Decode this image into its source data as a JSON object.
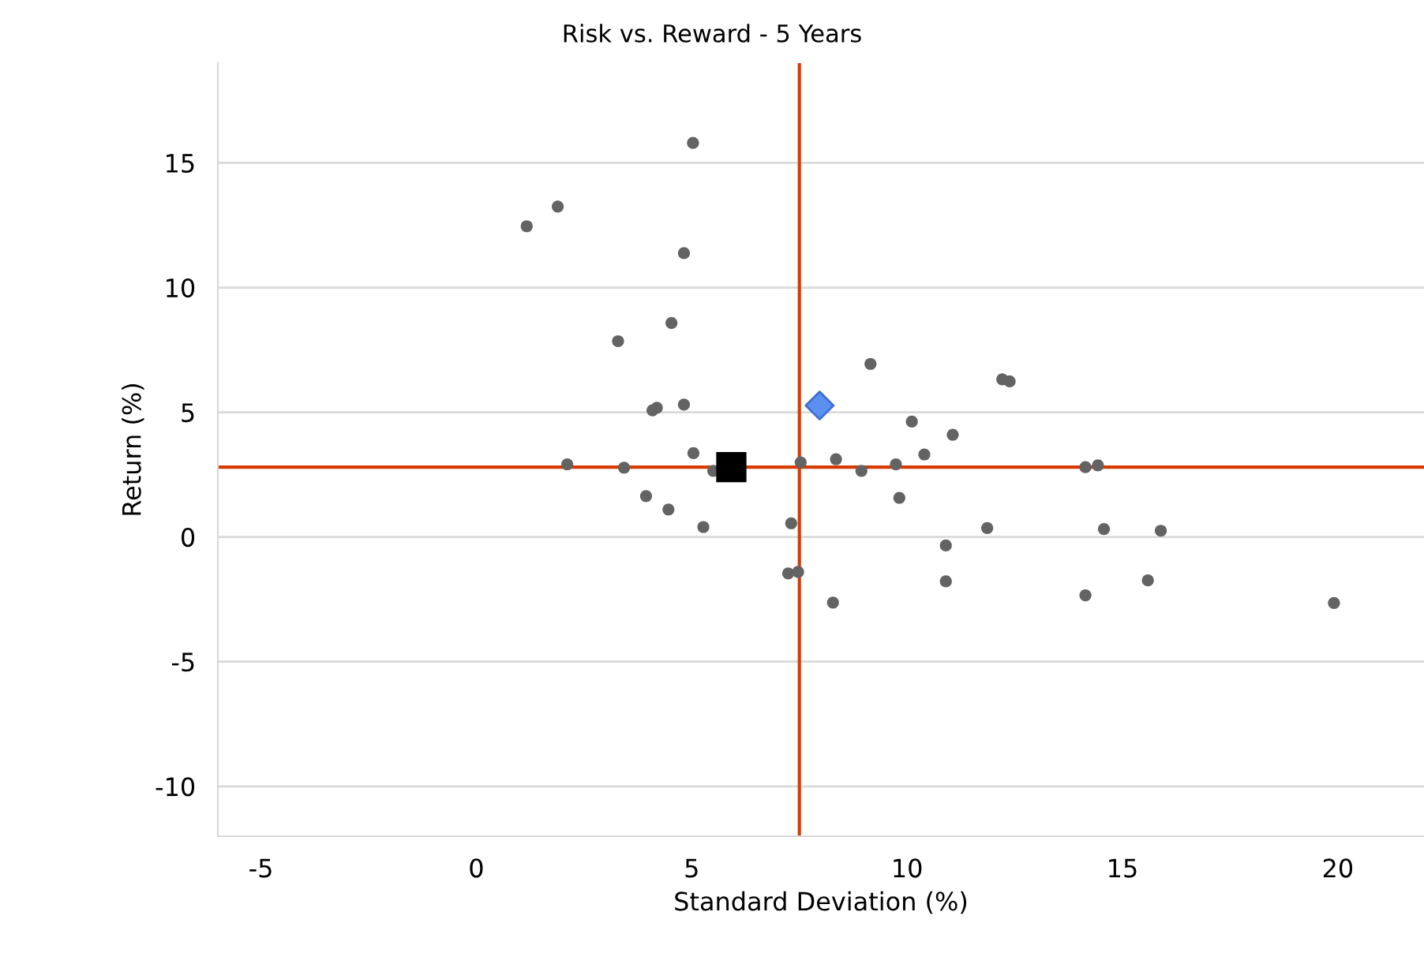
{
  "chart_data": {
    "type": "scatter",
    "title": "Risk vs. Reward - 5 Years",
    "xlabel": "Standard Deviation (%)",
    "ylabel": "Return (%)",
    "xlim": [
      -6,
      22
    ],
    "xticks": [
      -5,
      0,
      5,
      10,
      15,
      20
    ],
    "ylim": [
      -12,
      19
    ],
    "yticks": [
      -10,
      -5,
      0,
      5,
      10,
      15
    ],
    "grid": "y",
    "legend": false,
    "series": [
      {
        "color": "#636363",
        "marker": "circle",
        "x": [
          5.03,
          1.89,
          1.17,
          4.82,
          4.53,
          3.29,
          4.09,
          4.19,
          4.82,
          5.04,
          2.11,
          3.43,
          3.94,
          5.5,
          4.46,
          5.27,
          7.53,
          7.31,
          7.24,
          7.47,
          8.28,
          8.35,
          8.94,
          9.15,
          9.74,
          9.82,
          10.11,
          10.4,
          10.9,
          10.9,
          11.06,
          11.86,
          12.21,
          12.38,
          14.14,
          14.43,
          14.14,
          14.57,
          15.59,
          15.89,
          19.91
        ],
        "values": [
          15.8,
          13.25,
          12.46,
          11.38,
          8.58,
          7.85,
          5.08,
          5.18,
          5.31,
          3.36,
          2.91,
          2.78,
          1.64,
          2.65,
          1.1,
          0.4,
          2.99,
          0.55,
          -1.46,
          -1.4,
          -2.63,
          3.12,
          2.65,
          6.94,
          2.91,
          1.57,
          4.63,
          3.31,
          -0.34,
          -1.78,
          4.1,
          0.36,
          6.32,
          6.24,
          2.8,
          2.87,
          -2.34,
          0.32,
          -1.74,
          0.25,
          -2.65
        ]
      },
      {
        "color": "#000000",
        "marker": "square",
        "x": [
          5.92
        ],
        "values": [
          2.8
        ]
      },
      {
        "color": "#5b8ff0",
        "marker": "diamond",
        "x": [
          7.97
        ],
        "values": [
          5.27
        ]
      }
    ],
    "ref_lines": [
      {
        "axis": "x",
        "value": 7.5,
        "color": "#d83b01"
      },
      {
        "axis": "y",
        "value": 2.8,
        "color": "#d83b01"
      }
    ]
  }
}
